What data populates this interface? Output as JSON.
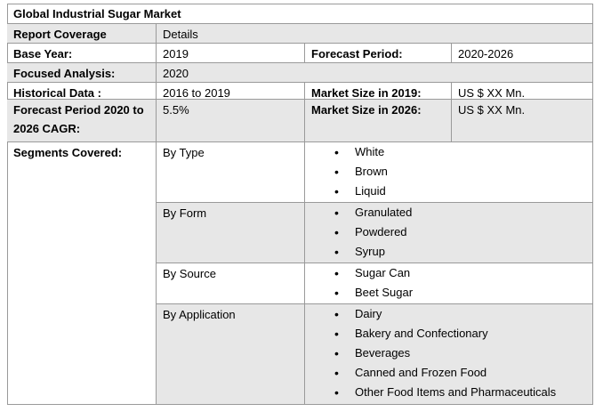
{
  "title": "Global Industrial Sugar Market",
  "rows": [
    [
      "Report Coverage",
      "Details"
    ],
    [
      "Base Year:",
      "2019",
      "Forecast Period:",
      "2020-2026"
    ],
    [
      "Focused Analysis:",
      "2020"
    ],
    [
      "Historical Data :",
      "2016 to 2019",
      "Market Size in 2019:",
      "US $ XX Mn."
    ],
    [
      "Forecast Period 2020 to 2026 CAGR:",
      "5.5%",
      "Market Size in 2026:",
      "US $ XX Mn."
    ]
  ],
  "segments": {
    "label": "Segments Covered:",
    "groups": [
      {
        "name": "By Type",
        "items": [
          "White",
          "Brown",
          "Liquid"
        ]
      },
      {
        "name": "By Form",
        "items": [
          "Granulated",
          "Powdered",
          "Syrup"
        ]
      },
      {
        "name": "By Source",
        "items": [
          "Sugar Can",
          "Beet Sugar"
        ]
      },
      {
        "name": "By Application",
        "items": [
          "Dairy",
          "Bakery and Confectionary",
          "Beverages",
          "Canned and Frozen Food",
          "Other Food Items and Pharmaceuticals"
        ]
      }
    ]
  }
}
